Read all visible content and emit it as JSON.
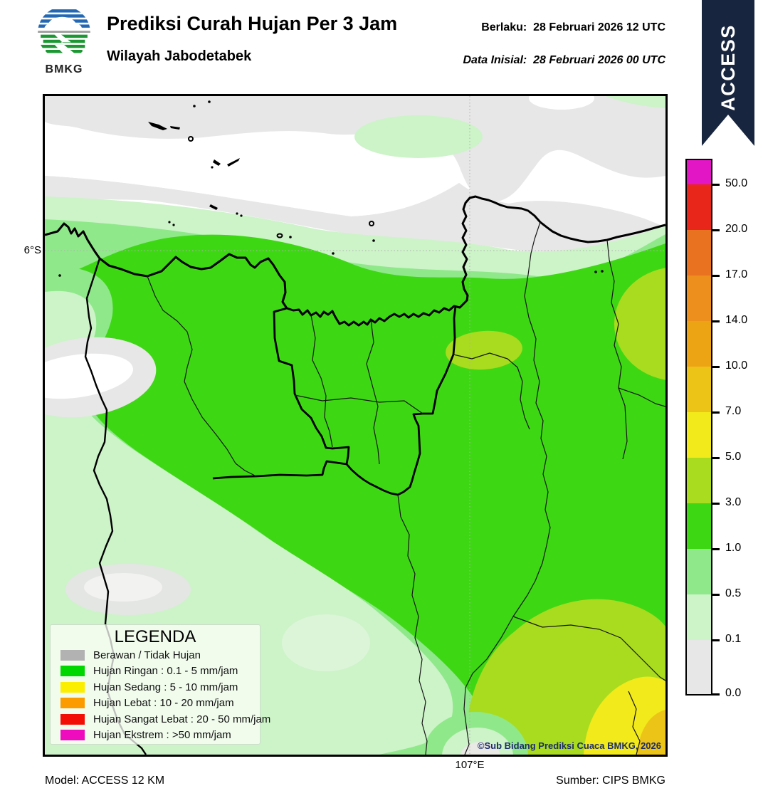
{
  "header": {
    "title": "Prediksi Curah Hujan Per 3 Jam",
    "subtitle": "Wilayah Jabodetabek",
    "valid": "Berlaku:  28 Februari 2026 12 UTC",
    "initial": "Data Inisial:  28 Februari 2026 00 UTC",
    "ribbon": "ACCESS",
    "logo": "BMKG"
  },
  "map": {
    "lat_label": "6°S",
    "lon_label": "107°E",
    "copyright": "©Sub Bidang Prediksi Cuaca BMKG, 2026"
  },
  "legend": {
    "title": "LEGENDA",
    "items": [
      {
        "label": "Berawan / Tidak Hujan",
        "color": "#b2b2b2"
      },
      {
        "label": "Hujan Ringan : 0.1 - 5 mm/jam",
        "color": "#00d600"
      },
      {
        "label": "Hujan Sedang : 5 - 10 mm/jam",
        "color": "#fcee00"
      },
      {
        "label": "Hujan Lebat : 10 - 20 mm/jam",
        "color": "#fb9b00"
      },
      {
        "label": "Hujan Sangat Lebat : 20 - 50 mm/jam",
        "color": "#f20d05"
      },
      {
        "label": "Hujan Ekstrem : >50 mm/jam",
        "color": "#ee0cbe"
      }
    ]
  },
  "colorbar": {
    "unit_values": [
      "50.0",
      "20.0",
      "17.0",
      "14.0",
      "10.0",
      "7.0",
      "5.0",
      "3.0",
      "1.0",
      "0.5",
      "0.1",
      "0.0"
    ],
    "segments": [
      {
        "range": ">50",
        "color": "#e316c6"
      },
      {
        "range": "20-50",
        "color": "#e8261a"
      },
      {
        "range": "17-20",
        "color": "#e97220"
      },
      {
        "range": "14-17",
        "color": "#ec8f1c"
      },
      {
        "range": "10-14",
        "color": "#eda414"
      },
      {
        "range": "7-10",
        "color": "#ecc418"
      },
      {
        "range": "5-7",
        "color": "#f2ea1a"
      },
      {
        "range": "3-5",
        "color": "#a9dc1e"
      },
      {
        "range": "1-3",
        "color": "#3ed714"
      },
      {
        "range": "0.5-1",
        "color": "#8fe88a"
      },
      {
        "range": "0.1-0.5",
        "color": "#cdf3c8"
      },
      {
        "range": "0.0-0.1",
        "color": "#e7e7e7"
      }
    ]
  },
  "footer": {
    "model": "Model: ACCESS 12 KM",
    "source": "Sumber: CIPS BMKG"
  }
}
